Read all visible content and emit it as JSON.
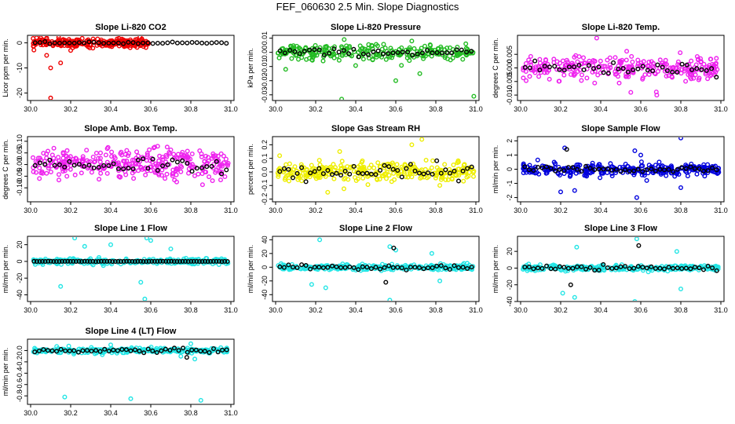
{
  "title": "FEF_060630  2.5 Min. Slope Diagnostics",
  "chart_data": [
    {
      "type": "scatter",
      "title": "Slope Li-820 CO2",
      "ylabel": "Licor ppm per min.",
      "xlim": [
        30.0,
        31.0
      ],
      "ylim": [
        -23,
        3
      ],
      "x_ticks": [
        "30.0",
        "30.2",
        "30.4",
        "30.6",
        "30.8",
        "31.0"
      ],
      "y_ticks": [
        {
          "v": 0,
          "label": "0"
        },
        {
          "v": -10,
          "label": "-10"
        },
        {
          "v": -20,
          "label": "-20"
        }
      ],
      "colors": {
        "main": "#ee0000",
        "overlay": "#000000"
      },
      "series": [
        {
          "name": "all",
          "spread": 1.5,
          "count": 260,
          "xmax": 0.6,
          "spikes": [
            [
              30.03,
              2
            ],
            [
              30.05,
              2
            ],
            [
              30.1,
              -10
            ],
            [
              30.15,
              -8
            ],
            [
              30.1,
              -22
            ],
            [
              30.08,
              -5
            ],
            [
              30.2,
              -3
            ]
          ]
        },
        {
          "name": "selected",
          "spread": 0.3,
          "count": 40,
          "spikes": []
        }
      ]
    },
    {
      "type": "scatter",
      "title": "Slope Li-820 Pressure",
      "ylabel": "kPa per min.",
      "xlim": [
        30.0,
        31.0
      ],
      "ylim": [
        -0.034,
        0.012
      ],
      "x_ticks": [
        "30.0",
        "30.2",
        "30.4",
        "30.6",
        "30.8",
        "31.0"
      ],
      "y_ticks": [
        {
          "v": 0.01,
          "label": "0.01"
        },
        {
          "v": 0.0,
          "label": "0.00"
        },
        {
          "v": -0.01,
          "label": "-0.01"
        },
        {
          "v": -0.02,
          "label": "-0.02"
        },
        {
          "v": -0.03,
          "label": "-0.03"
        }
      ],
      "colors": {
        "main": "#22bb22",
        "overlay": "#000000"
      },
      "series": [
        {
          "name": "all",
          "spread": 0.005,
          "count": 260,
          "spikes": [
            [
              30.33,
              -0.033
            ],
            [
              30.6,
              -0.02
            ],
            [
              30.99,
              -0.031
            ],
            [
              30.68,
              0.008
            ],
            [
              30.72,
              -0.015
            ],
            [
              30.05,
              -0.012
            ],
            [
              30.95,
              0.006
            ]
          ]
        },
        {
          "name": "selected",
          "spread": 0.002,
          "count": 40,
          "spikes": []
        }
      ]
    },
    {
      "type": "scatter",
      "title": "Slope Li-820 Temp.",
      "ylabel": "degrees C per min.",
      "xlim": [
        30.0,
        31.0
      ],
      "ylim": [
        -0.012,
        0.012
      ],
      "x_ticks": [
        "30.0",
        "30.2",
        "30.4",
        "30.6",
        "30.8",
        "31.0"
      ],
      "y_ticks": [
        {
          "v": 0.005,
          "label": "0.005"
        },
        {
          "v": 0.0,
          "label": "0.000"
        },
        {
          "v": -0.005,
          "label": "-0.005"
        },
        {
          "v": -0.01,
          "label": "-0.010"
        }
      ],
      "colors": {
        "main": "#ee22ee",
        "overlay": "#000000"
      },
      "series": [
        {
          "name": "all",
          "spread": 0.004,
          "count": 280,
          "spikes": [
            [
              30.38,
              0.011
            ],
            [
              30.55,
              -0.009
            ],
            [
              30.68,
              -0.01
            ]
          ]
        },
        {
          "name": "selected",
          "spread": 0.002,
          "count": 40,
          "spikes": []
        }
      ]
    },
    {
      "type": "scatter",
      "title": "Slope Amb. Box Temp.",
      "ylabel": "degrees C per min.",
      "xlim": [
        30.0,
        31.0
      ],
      "ylim": [
        -0.16,
        0.12
      ],
      "x_ticks": [
        "30.0",
        "30.2",
        "30.4",
        "30.6",
        "30.8",
        "31.0"
      ],
      "y_ticks": [
        {
          "v": 0.1,
          "label": "0.10"
        },
        {
          "v": 0.05,
          "label": "0.05"
        },
        {
          "v": 0.0,
          "label": "0.00"
        },
        {
          "v": -0.05,
          "label": "-0.05"
        },
        {
          "v": -0.1,
          "label": "-0.10"
        }
      ],
      "colors": {
        "main": "#ee22ee",
        "overlay": "#000000"
      },
      "series": [
        {
          "name": "all",
          "spread": 0.06,
          "count": 320,
          "spikes": []
        },
        {
          "name": "selected",
          "spread": 0.03,
          "count": 40,
          "spikes": []
        }
      ]
    },
    {
      "type": "scatter",
      "title": "Slope Gas Stream RH",
      "ylabel": "percent per min.",
      "xlim": [
        30.0,
        31.0
      ],
      "ylim": [
        -0.22,
        0.26
      ],
      "x_ticks": [
        "30.0",
        "30.2",
        "30.4",
        "30.6",
        "30.8",
        "31.0"
      ],
      "y_ticks": [
        {
          "v": 0.2,
          "label": "0.2"
        },
        {
          "v": 0.1,
          "label": "0.1"
        },
        {
          "v": 0.0,
          "label": "0.0"
        },
        {
          "v": -0.1,
          "label": "-0.1"
        },
        {
          "v": -0.2,
          "label": "-0.2"
        }
      ],
      "colors": {
        "main": "#eeee00",
        "overlay": "#000000"
      },
      "series": [
        {
          "name": "all",
          "spread": 0.06,
          "count": 300,
          "spikes": [
            [
              30.73,
              0.24
            ],
            [
              30.68,
              0.2
            ],
            [
              30.32,
              0.15
            ],
            [
              30.26,
              -0.15
            ],
            [
              30.02,
              0.12
            ],
            [
              30.07,
              0.06
            ]
          ]
        },
        {
          "name": "selected",
          "spread": 0.05,
          "count": 45,
          "spikes": []
        }
      ]
    },
    {
      "type": "scatter",
      "title": "Slope Sample Flow",
      "ylabel": "ml/min per min.",
      "xlim": [
        30.0,
        31.0
      ],
      "ylim": [
        -2.3,
        2.3
      ],
      "x_ticks": [
        "30.0",
        "30.2",
        "30.4",
        "30.6",
        "30.8",
        "31.0"
      ],
      "y_ticks": [
        {
          "v": 2,
          "label": "2"
        },
        {
          "v": 1,
          "label": "1"
        },
        {
          "v": 0,
          "label": "0"
        },
        {
          "v": -1,
          "label": "-1"
        },
        {
          "v": -2,
          "label": "-2"
        }
      ],
      "colors": {
        "main": "#0000dd",
        "overlay": "#000000"
      },
      "series": [
        {
          "name": "all",
          "spread": 0.35,
          "count": 300,
          "spikes": [
            [
              30.22,
              1.5
            ],
            [
              30.27,
              -1.5
            ],
            [
              30.2,
              -1.6
            ],
            [
              30.58,
              -2.0
            ],
            [
              30.8,
              2.2
            ],
            [
              30.8,
              -1.3
            ],
            [
              30.57,
              1.3
            ],
            [
              30.6,
              1.0
            ],
            [
              30.63,
              -0.8
            ]
          ]
        },
        {
          "name": "selected",
          "spread": 0.2,
          "count": 45,
          "spikes": [
            [
              30.23,
              1.4
            ]
          ]
        }
      ]
    },
    {
      "type": "scatter",
      "title": "Slope Line 1 Flow",
      "ylabel": "ml/min per min.",
      "xlim": [
        30.0,
        31.0
      ],
      "ylim": [
        -48,
        30
      ],
      "x_ticks": [
        "30.0",
        "30.2",
        "30.4",
        "30.6",
        "30.8",
        "31.0"
      ],
      "y_ticks": [
        {
          "v": 20,
          "label": "20"
        },
        {
          "v": 0,
          "label": "0"
        },
        {
          "v": -20,
          "label": "-20"
        },
        {
          "v": -40,
          "label": "-40"
        }
      ],
      "colors": {
        "main": "#22e5e5",
        "overlay": "#000000"
      },
      "series": [
        {
          "name": "all",
          "spread": 3,
          "count": 280,
          "spikes": [
            [
              30.22,
              28
            ],
            [
              30.57,
              -45
            ],
            [
              30.58,
              28
            ],
            [
              30.55,
              -25
            ],
            [
              30.7,
              15
            ],
            [
              30.4,
              20
            ],
            [
              30.15,
              -30
            ],
            [
              30.6,
              25
            ],
            [
              30.27,
              18
            ]
          ]
        },
        {
          "name": "selected",
          "spread": 0.1,
          "count": 70,
          "spikes": []
        }
      ]
    },
    {
      "type": "scatter",
      "title": "Slope Line 2 Flow",
      "ylabel": "ml/min per min.",
      "xlim": [
        30.0,
        31.0
      ],
      "ylim": [
        -50,
        45
      ],
      "x_ticks": [
        "30.0",
        "30.2",
        "30.4",
        "30.6",
        "30.8",
        "31.0"
      ],
      "y_ticks": [
        {
          "v": 40,
          "label": "40"
        },
        {
          "v": 20,
          "label": "20"
        },
        {
          "v": 0,
          "label": "0"
        },
        {
          "v": -20,
          "label": "-20"
        },
        {
          "v": -40,
          "label": "-40"
        }
      ],
      "colors": {
        "main": "#22e5e5",
        "overlay": "#000000"
      },
      "series": [
        {
          "name": "all",
          "spread": 4,
          "count": 280,
          "spikes": [
            [
              30.57,
              -48
            ],
            [
              30.22,
              40
            ],
            [
              30.57,
              30
            ],
            [
              30.18,
              -25
            ],
            [
              30.6,
              25
            ],
            [
              30.78,
              20
            ],
            [
              30.82,
              -20
            ],
            [
              30.25,
              -30
            ]
          ]
        },
        {
          "name": "selected",
          "spread": 2.5,
          "count": 45,
          "spikes": [
            [
              30.59,
              28
            ],
            [
              30.55,
              -22
            ]
          ]
        }
      ]
    },
    {
      "type": "scatter",
      "title": "Slope Line 3 Flow",
      "ylabel": "ml/min per min.",
      "xlim": [
        30.0,
        31.0
      ],
      "ylim": [
        -40,
        38
      ],
      "x_ticks": [
        "30.0",
        "30.2",
        "30.4",
        "30.6",
        "30.8",
        "31.0"
      ],
      "y_ticks": [
        {
          "v": 20,
          "label": "20"
        },
        {
          "v": 0,
          "label": "0"
        },
        {
          "v": -20,
          "label": "-20"
        },
        {
          "v": -40,
          "label": "-40"
        }
      ],
      "colors": {
        "main": "#22e5e5",
        "overlay": "#000000"
      },
      "series": [
        {
          "name": "all",
          "spread": 3,
          "count": 280,
          "spikes": [
            [
              30.57,
              -40
            ],
            [
              30.27,
              -35
            ],
            [
              30.28,
              25
            ],
            [
              30.58,
              35
            ],
            [
              30.21,
              -30
            ],
            [
              30.78,
              20
            ],
            [
              30.8,
              -25
            ]
          ]
        },
        {
          "name": "selected",
          "spread": 2,
          "count": 45,
          "spikes": [
            [
              30.59,
              27
            ],
            [
              30.25,
              -20
            ]
          ]
        }
      ]
    },
    {
      "type": "scatter",
      "title": "Slope Line 4 (LT) Flow",
      "ylabel": "ml/min per min.",
      "xlim": [
        30.0,
        31.0
      ],
      "ylim": [
        -0.95,
        0.2
      ],
      "x_ticks": [
        "30.0",
        "30.2",
        "30.4",
        "30.6",
        "30.8",
        "31.0"
      ],
      "y_ticks": [
        {
          "v": 0.0,
          "label": "0.0"
        },
        {
          "v": -0.2,
          "label": "-0.2"
        },
        {
          "v": -0.4,
          "label": "-0.4"
        },
        {
          "v": -0.6,
          "label": "-0.6"
        },
        {
          "v": -0.8,
          "label": "-0.8"
        }
      ],
      "colors": {
        "main": "#22e5e5",
        "overlay": "#000000"
      },
      "series": [
        {
          "name": "all",
          "spread": 0.04,
          "count": 280,
          "spikes": [
            [
              30.17,
              -0.82
            ],
            [
              30.5,
              -0.85
            ],
            [
              30.85,
              -0.88
            ],
            [
              30.82,
              -0.15
            ],
            [
              30.8,
              0.12
            ],
            [
              30.4,
              0.1
            ],
            [
              30.95,
              0.05
            ],
            [
              30.75,
              -0.1
            ]
          ]
        },
        {
          "name": "selected",
          "spread": 0.03,
          "count": 45,
          "spikes": [
            [
              30.78,
              -0.12
            ]
          ]
        }
      ]
    }
  ]
}
